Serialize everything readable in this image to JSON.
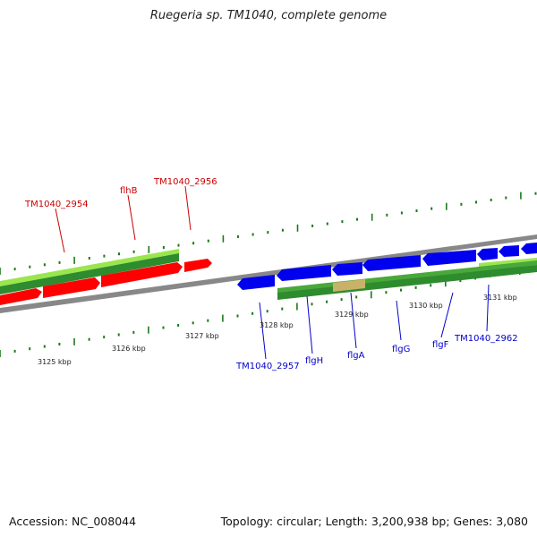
{
  "title": "Ruegeria sp. TM1040, complete genome",
  "footer": {
    "accession": "Accession: NC_008044",
    "summary": "Topology: circular; Length: 3,200,938 bp; Genes: 3,080"
  },
  "colors": {
    "forward_gene": "#ff0000",
    "reverse_gene": "#0000ee",
    "cds_band": "#2e8b2e",
    "cds_light": "#99e64d",
    "pseudo_band": "#c8b26a",
    "top_label": "#cc0000",
    "bottom_label": "#0000cc",
    "tick": "#1a7a1a",
    "backbone": "#888888"
  },
  "scale": {
    "unit": "kbp",
    "ticks": [
      "3125 kbp",
      "3126 kbp",
      "3127 kbp",
      "3128 kbp",
      "3129 kbp",
      "3130 kbp",
      "3131 kbp"
    ]
  },
  "genes_top": [
    "TM1040_2954",
    "flhB",
    "TM1040_2956"
  ],
  "genes_bottom": [
    "TM1040_2957",
    "flgH",
    "flgA",
    "flgG",
    "flgF",
    "TM1040_2962"
  ]
}
